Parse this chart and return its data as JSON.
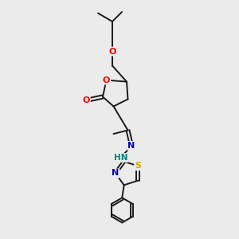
{
  "background_color": "#ebebeb",
  "bond_color": "#1a1a1a",
  "oxygen_color": "#ff0000",
  "nitrogen_color": "#0000cc",
  "sulfur_color": "#ccaa00",
  "hn_color": "#008080",
  "figsize": [
    3.0,
    3.0
  ],
  "dpi": 100,
  "xlim": [
    0,
    10
  ],
  "ylim": [
    0,
    10
  ]
}
